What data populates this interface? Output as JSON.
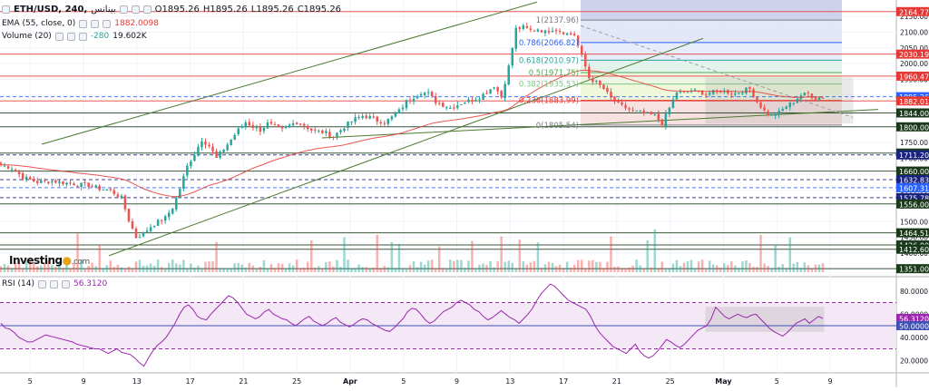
{
  "header": {
    "symbol": "ETH/USD, 240,",
    "exchange": "بينانس",
    "ohlc": {
      "o": "O1895.26",
      "h": "H1895.26",
      "l": "L1895.26",
      "c": "C1895.26"
    }
  },
  "ema": {
    "label": "EMA (55, close, 0)",
    "value": "1882.0098",
    "color": "#e53935"
  },
  "volume": {
    "label": "Volume (20)",
    "delta": "-280",
    "value": "19.602K"
  },
  "rsi": {
    "label": "RSI (14)",
    "value": "56.3120"
  },
  "logo": {
    "name": "Investing",
    "suffix": ".com"
  },
  "colors": {
    "up": "#26a69a",
    "down": "#ef5350",
    "ema": "#e53935",
    "rsi": "#9c27b0",
    "trendline": "#4b7a2e",
    "fib_gray": "#777777"
  },
  "chart_data": [
    {
      "type": "candlestick",
      "title": "ETH/USD, 240",
      "x_ticks": [
        "5",
        "9",
        "13",
        "17",
        "21",
        "25",
        "Apr",
        "5",
        "9",
        "13",
        "17",
        "21",
        "25",
        "May",
        "5",
        "9"
      ],
      "ylim": [
        1340,
        2190
      ],
      "y_ticks": [
        "2150.00",
        "2100.00",
        "2050.00",
        "2000.00",
        "1950.00",
        "1900.00",
        "1850.00",
        "1800.00",
        "1750.00",
        "1700.00",
        "1650.00",
        "1600.00",
        "1550.00",
        "1500.00",
        "1450.00",
        "1400.00",
        "1350.00"
      ],
      "current_price": "1895.26",
      "ema_value": "1882.01",
      "price_markers": [
        {
          "label": "2164.77",
          "price": 2164.77,
          "color": "#e53935"
        },
        {
          "label": "2030.19",
          "price": 2030.19,
          "color": "#e53935"
        },
        {
          "label": "1960.47",
          "price": 1960.47,
          "color": "#e53935"
        },
        {
          "label": "1895.26",
          "price": 1895.26,
          "color": "#2962ff"
        },
        {
          "label": "1882.01",
          "price": 1882.01,
          "color": "#e53935"
        },
        {
          "label": "1844.00",
          "price": 1844.0,
          "color": "#1b3a1b"
        },
        {
          "label": "1800.00",
          "price": 1800.0,
          "color": "#1b3a1b"
        },
        {
          "label": "1717.00",
          "price": 1717.0,
          "color": "#1b3a1b"
        },
        {
          "label": "1711.20",
          "price": 1711.2,
          "color": "#1a237e"
        },
        {
          "label": "1660.00",
          "price": 1660.0,
          "color": "#1b3a1b"
        },
        {
          "label": "1632.83",
          "price": 1632.83,
          "color": "#1a237e"
        },
        {
          "label": "1607.31",
          "price": 1607.31,
          "color": "#2962ff"
        },
        {
          "label": "1575.78",
          "price": 1575.78,
          "color": "#1a237e"
        },
        {
          "label": "1556.00",
          "price": 1556.0,
          "color": "#1b3a1b"
        },
        {
          "label": "1464.51",
          "price": 1464.51,
          "color": "#1b3a1b"
        },
        {
          "label": "1426.00",
          "price": 1426.0,
          "color": "#1b3a1b"
        },
        {
          "label": "1412.60",
          "price": 1412.6,
          "color": "#1b3a1b"
        },
        {
          "label": "1351.00",
          "price": 1351.0,
          "color": "#1b3a1b"
        }
      ],
      "fib_levels": [
        {
          "ratio": "1",
          "price": 2137.96,
          "label": "1(2137.96)"
        },
        {
          "ratio": "0.786",
          "price": 2066.82,
          "label": "0.786(2066.82)"
        },
        {
          "ratio": "0.618",
          "price": 2010.97,
          "label": "0.618(2010.97)"
        },
        {
          "ratio": "0.5",
          "price": 1971.75,
          "label": "0.5(1971.75)"
        },
        {
          "ratio": "0.382",
          "price": 1935.53,
          "label": "0.382(1935.53)"
        },
        {
          "ratio": "0.236",
          "price": 1883.99,
          "label": "0.236(1883.99)"
        },
        {
          "ratio": "0",
          "price": 1805.54,
          "label": "0(1805.54)"
        }
      ],
      "close_path": [
        [
          0,
          1680
        ],
        [
          3,
          1670
        ],
        [
          6,
          1640
        ],
        [
          10,
          1625
        ],
        [
          14,
          1628
        ],
        [
          18,
          1622
        ],
        [
          21,
          1618
        ],
        [
          24,
          1615
        ],
        [
          27,
          1605
        ],
        [
          30,
          1598
        ],
        [
          33,
          1575
        ],
        [
          35,
          1505
        ],
        [
          37,
          1450
        ],
        [
          39,
          1462
        ],
        [
          41,
          1485
        ],
        [
          43,
          1500
        ],
        [
          45,
          1512
        ],
        [
          47,
          1545
        ],
        [
          49,
          1605
        ],
        [
          51,
          1675
        ],
        [
          53,
          1715
        ],
        [
          55,
          1760
        ],
        [
          57,
          1740
        ],
        [
          59,
          1700
        ],
        [
          61,
          1730
        ],
        [
          63,
          1760
        ],
        [
          65,
          1790
        ],
        [
          67,
          1815
        ],
        [
          69,
          1800
        ],
        [
          71,
          1790
        ],
        [
          73,
          1810
        ],
        [
          75,
          1800
        ],
        [
          77,
          1790
        ],
        [
          79,
          1805
        ],
        [
          81,
          1815
        ],
        [
          83,
          1805
        ],
        [
          85,
          1790
        ],
        [
          87,
          1785
        ],
        [
          89,
          1780
        ],
        [
          91,
          1770
        ],
        [
          93,
          1790
        ],
        [
          95,
          1810
        ],
        [
          97,
          1825
        ],
        [
          99,
          1835
        ],
        [
          101,
          1830
        ],
        [
          103,
          1820
        ],
        [
          105,
          1815
        ],
        [
          107,
          1830
        ],
        [
          109,
          1850
        ],
        [
          111,
          1880
        ],
        [
          113,
          1895
        ],
        [
          115,
          1910
        ],
        [
          117,
          1905
        ],
        [
          119,
          1880
        ],
        [
          121,
          1870
        ],
        [
          123,
          1860
        ],
        [
          125,
          1870
        ],
        [
          127,
          1880
        ],
        [
          129,
          1885
        ],
        [
          131,
          1895
        ],
        [
          133,
          1910
        ],
        [
          135,
          1930
        ],
        [
          137,
          1895
        ],
        [
          139,
          1990
        ],
        [
          141,
          2110
        ],
        [
          143,
          2115
        ],
        [
          145,
          2105
        ],
        [
          147,
          2110
        ],
        [
          149,
          2100
        ],
        [
          151,
          2110
        ],
        [
          153,
          2105
        ],
        [
          155,
          2095
        ],
        [
          157,
          2090
        ],
        [
          159,
          2025
        ],
        [
          161,
          1955
        ],
        [
          163,
          1940
        ],
        [
          165,
          1920
        ],
        [
          167,
          1890
        ],
        [
          169,
          1870
        ],
        [
          171,
          1860
        ],
        [
          173,
          1850
        ],
        [
          175,
          1845
        ],
        [
          177,
          1840
        ],
        [
          179,
          1835
        ],
        [
          181,
          1810
        ],
        [
          183,
          1860
        ],
        [
          185,
          1910
        ],
        [
          187,
          1905
        ],
        [
          189,
          1915
        ],
        [
          191,
          1910
        ],
        [
          193,
          1905
        ],
        [
          195,
          1910
        ],
        [
          197,
          1915
        ],
        [
          199,
          1910
        ],
        [
          201,
          1905
        ],
        [
          203,
          1915
        ],
        [
          205,
          1920
        ],
        [
          207,
          1880
        ],
        [
          209,
          1850
        ],
        [
          211,
          1835
        ],
        [
          213,
          1845
        ],
        [
          215,
          1865
        ],
        [
          217,
          1880
        ],
        [
          219,
          1900
        ],
        [
          221,
          1905
        ],
        [
          223,
          1890
        ],
        [
          225,
          1895.26
        ]
      ],
      "rsi": {
        "ylim": [
          10,
          90
        ],
        "y_ticks": [
          "80.0000",
          "60.0000",
          "40.0000",
          "20.0000"
        ],
        "levels": [
          70,
          50,
          30
        ],
        "current": 56.312,
        "current_label": "56.3120",
        "mid_label": "50.0000",
        "series": [
          52,
          48,
          47,
          44,
          40,
          38,
          36,
          36,
          38,
          40,
          42,
          41,
          40,
          39,
          38,
          37,
          36,
          34,
          33,
          32,
          31,
          30,
          30,
          28,
          26,
          28,
          30,
          27,
          26,
          25,
          22,
          18,
          15,
          22,
          28,
          33,
          36,
          40,
          46,
          52,
          60,
          66,
          68,
          64,
          58,
          56,
          55,
          60,
          64,
          68,
          72,
          76,
          74,
          70,
          65,
          60,
          58,
          56,
          58,
          62,
          64,
          60,
          58,
          56,
          55,
          52,
          50,
          53,
          56,
          58,
          54,
          52,
          50,
          52,
          55,
          57,
          53,
          51,
          49,
          51,
          54,
          56,
          55,
          52,
          50,
          48,
          46,
          45,
          48,
          52,
          56,
          62,
          65,
          64,
          60,
          55,
          52,
          54,
          58,
          62,
          64,
          66,
          70,
          72,
          70,
          68,
          64,
          62,
          58,
          55,
          57,
          60,
          63,
          60,
          57,
          55,
          52,
          56,
          60,
          65,
          72,
          78,
          82,
          86,
          84,
          80,
          76,
          72,
          70,
          68,
          66,
          64,
          58,
          50,
          44,
          40,
          36,
          32,
          30,
          28,
          26,
          30,
          34,
          28,
          24,
          22,
          24,
          28,
          33,
          38,
          36,
          33,
          31,
          34,
          38,
          42,
          46,
          48,
          50,
          56,
          66,
          62,
          58,
          56,
          58,
          60,
          58,
          57,
          59,
          60,
          56,
          52,
          48,
          45,
          43,
          41,
          44,
          48,
          52,
          54,
          56,
          52,
          55,
          58,
          56.3
        ]
      }
    }
  ]
}
